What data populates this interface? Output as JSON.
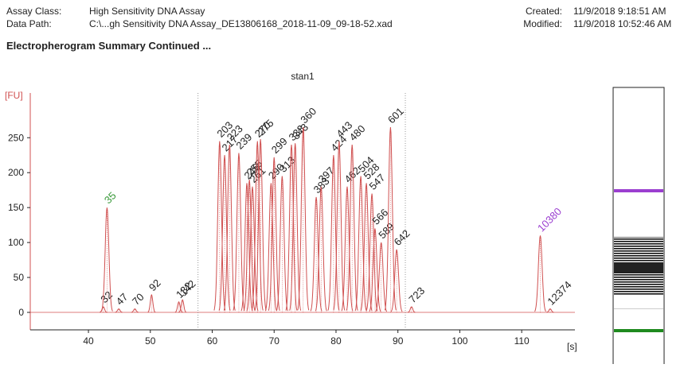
{
  "header": {
    "left": [
      [
        "Assay Class:",
        "High Sensitivity DNA Assay"
      ],
      [
        "Data Path:",
        "C:\\...gh Sensitivity DNA Assay_DE13806168_2018-11-09_09-18-52.xad"
      ]
    ],
    "right": [
      [
        "Created:",
        "11/9/2018 9:18:51 AM"
      ],
      [
        "Modified:",
        "11/9/2018 10:52:46 AM"
      ]
    ],
    "section_title": "Electropherogram Summary Continued ..."
  },
  "chart_data": {
    "type": "electropherogram",
    "title": "stan1",
    "y_label": "[FU]",
    "x_label": "[s]",
    "xlim": [
      30.6,
      118.6
    ],
    "ylim": [
      -25,
      314
    ],
    "xticks": [
      40,
      50,
      60,
      70,
      80,
      90,
      100,
      110
    ],
    "yticks": [
      0,
      50,
      100,
      150,
      200,
      250
    ],
    "color": "#d05050",
    "region": [
      57.7,
      91.2
    ],
    "peaks": {
      "labels": [
        "32",
        "47",
        "70",
        "92",
        "132",
        "142",
        "203",
        "217",
        "223",
        "239",
        "246",
        "255",
        "261",
        "270",
        "275",
        "290",
        "299",
        "313",
        "333",
        "343",
        "360",
        "383",
        "397",
        "424",
        "443",
        "462",
        "480",
        "504",
        "528",
        "547",
        "566",
        "589",
        "601",
        "642",
        "723",
        "12374"
      ],
      "x": [
        42.4,
        44.9,
        47.5,
        50.2,
        54.6,
        55.2,
        61.2,
        62.0,
        62.8,
        64.3,
        65.6,
        66.0,
        66.5,
        67.3,
        67.8,
        69.5,
        70.0,
        71.3,
        72.8,
        73.4,
        74.7,
        76.8,
        77.6,
        79.6,
        80.5,
        81.8,
        82.6,
        84.0,
        84.9,
        85.8,
        86.3,
        87.3,
        88.8,
        89.8,
        92.2,
        114.6
      ],
      "values": [
        8,
        5,
        5,
        25,
        15,
        18,
        245,
        225,
        240,
        228,
        185,
        190,
        180,
        245,
        248,
        185,
        222,
        195,
        240,
        242,
        265,
        165,
        180,
        225,
        245,
        180,
        240,
        195,
        185,
        170,
        120,
        100,
        265,
        90,
        8,
        5
      ]
    },
    "markers": [
      {
        "label": "35",
        "x": 43.0,
        "value": 150,
        "color": "#3a9a3a"
      },
      {
        "label": "10380",
        "x": 113.0,
        "value": 110,
        "color": "#9b3fd0"
      }
    ]
  }
}
